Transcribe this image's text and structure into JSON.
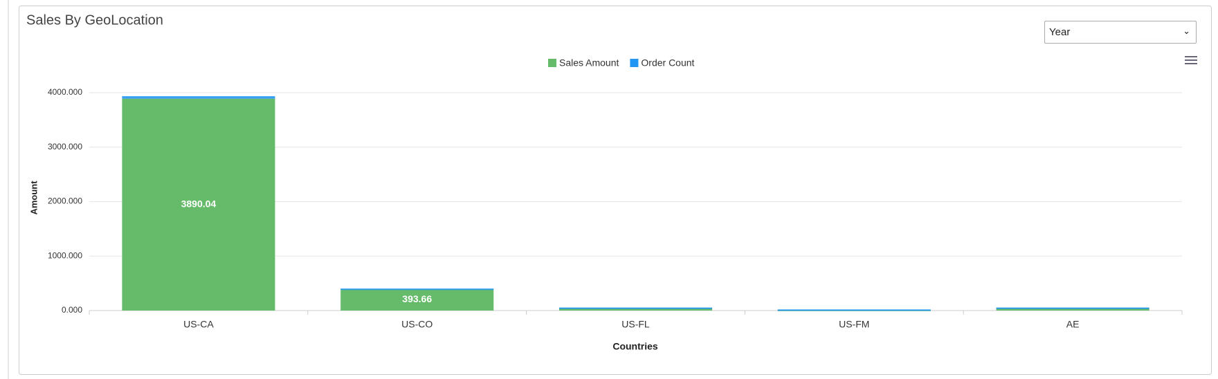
{
  "header": {
    "title": "Sales By GeoLocation",
    "dropdown": "Year"
  },
  "chart_data": {
    "type": "stacked_bar",
    "categories": [
      "US-CA",
      "US-CO",
      "US-FL",
      "US-FM",
      "AE"
    ],
    "series": [
      {
        "name": "Sales Amount",
        "color": "#66bb6a",
        "values": [
          3890.04,
          393.66,
          50,
          15,
          50
        ],
        "value_labels": [
          "3890.04",
          "393.66",
          null,
          null,
          null
        ]
      },
      {
        "name": "Order Count",
        "color": "#2196f3",
        "values": [
          45,
          10,
          5,
          5,
          5
        ]
      }
    ],
    "ylim": [
      0,
      4000
    ],
    "yticks": [
      {
        "value": 0,
        "label": "0.000"
      },
      {
        "value": 1000,
        "label": "1000.000"
      },
      {
        "value": 2000,
        "label": "2000.000"
      },
      {
        "value": 3000,
        "label": "3000.000"
      },
      {
        "value": 4000,
        "label": "4000.000"
      }
    ],
    "xlabel": "Countries",
    "ylabel": "Amount",
    "grid": true,
    "legend": "top"
  }
}
